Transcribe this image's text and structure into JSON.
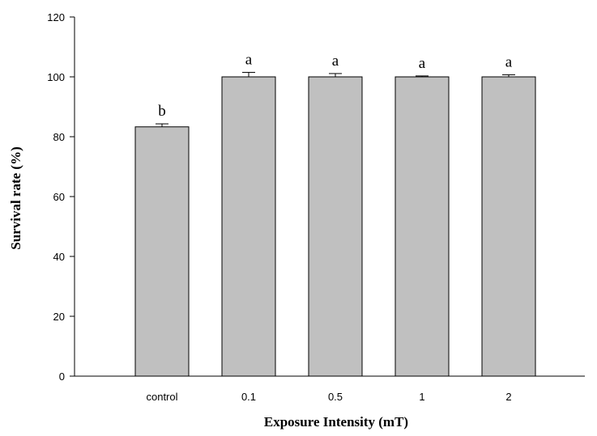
{
  "chart_data": {
    "type": "bar",
    "title": "",
    "xlabel": "Exposure Intensity  (mT)",
    "ylabel": "Survival rate (%)",
    "categories": [
      "control",
      "0.1",
      "0.5",
      "1",
      "2"
    ],
    "values": [
      83.3,
      100,
      100,
      100,
      100
    ],
    "errors": [
      1.0,
      1.5,
      1.1,
      0.3,
      0.7
    ],
    "significance_labels": [
      "b",
      "a",
      "a",
      "a",
      "a"
    ],
    "ylim": [
      0,
      120
    ],
    "yticks": [
      "0",
      "20",
      "40",
      "60",
      "80",
      "100",
      "120"
    ],
    "grid": false,
    "legend": "none",
    "bar_color": "#c0c0c0",
    "edge_color": "#000000"
  }
}
